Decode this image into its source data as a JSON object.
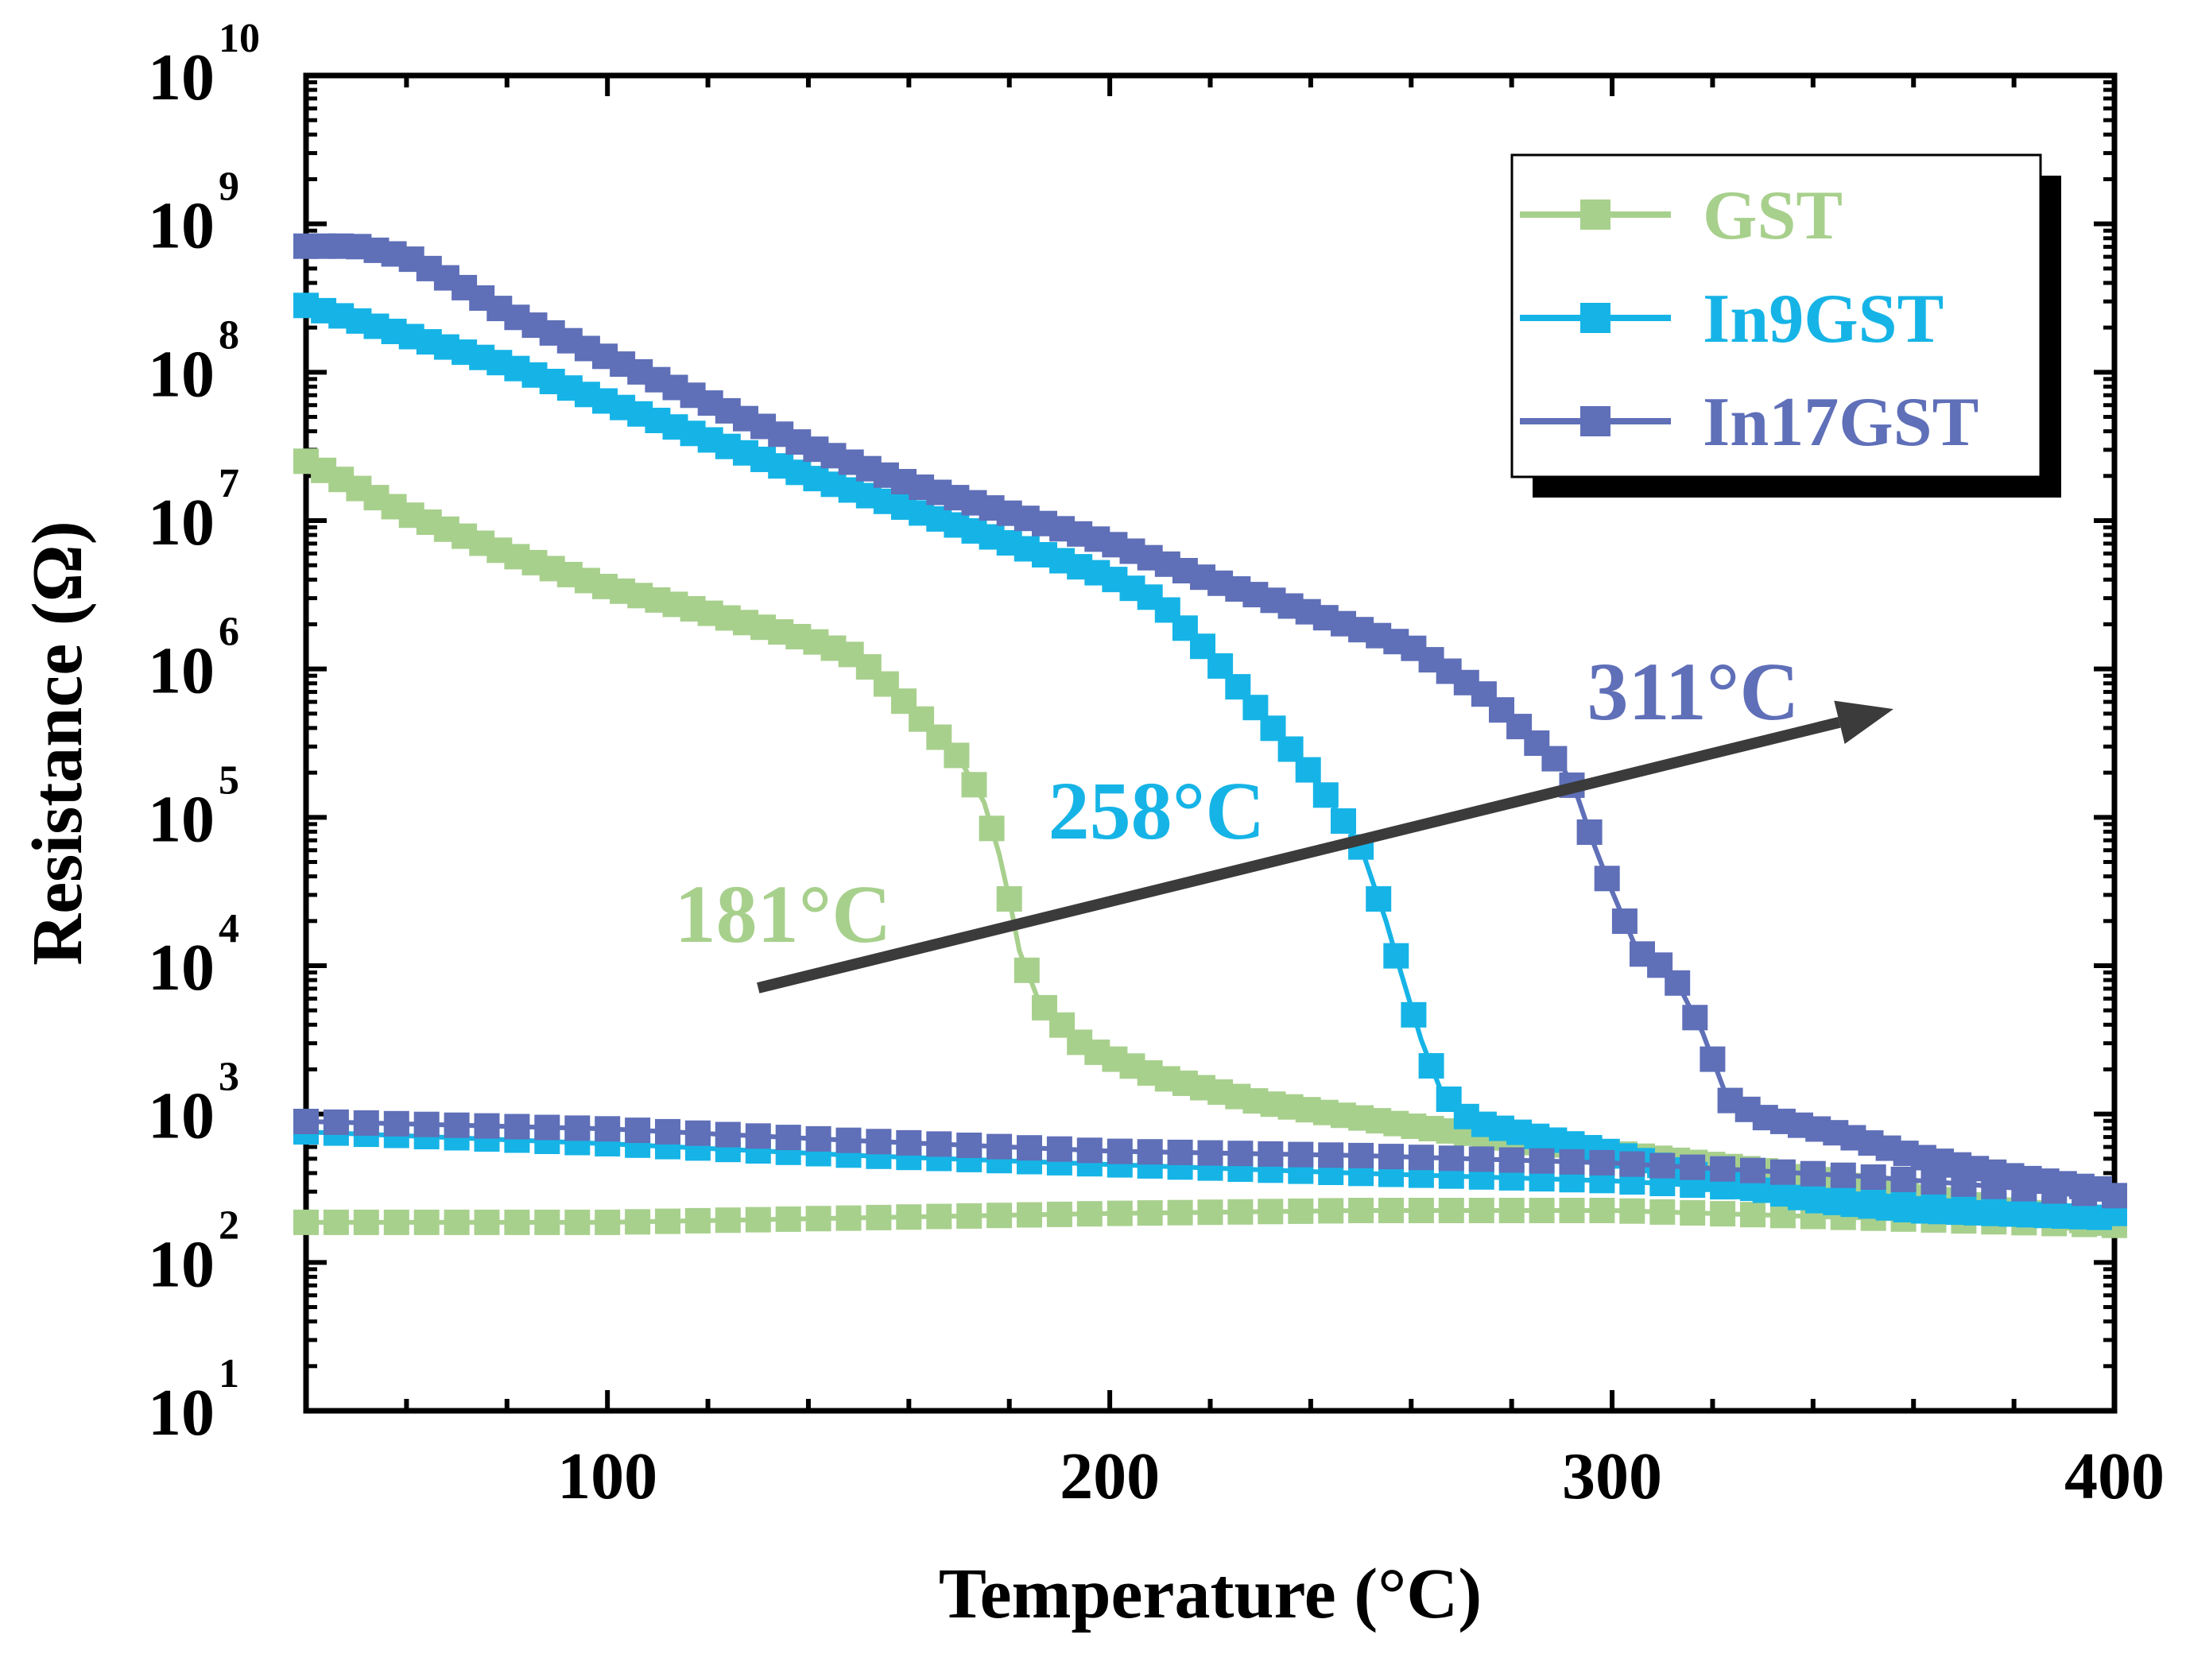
{
  "chart_data": {
    "type": "scatter",
    "xlabel": "Temperature (°C)",
    "ylabel": "Resistance (Ω)",
    "xlim": [
      40,
      400
    ],
    "ylim_log10": [
      1,
      10
    ],
    "x_ticks": [
      100,
      200,
      300,
      400
    ],
    "y_tick_bases": [
      "10",
      "10",
      "10",
      "10",
      "10",
      "10",
      "10",
      "10",
      "10",
      "10"
    ],
    "y_tick_exponents": [
      "1",
      "2",
      "3",
      "4",
      "5",
      "6",
      "7",
      "8",
      "9",
      "10"
    ],
    "colors": {
      "GST": "#a8d08d",
      "In9GST": "#16b4e6",
      "In17GST": "#5f6fb8",
      "arrow": "#3b3b3b"
    },
    "series": [
      {
        "name": "GST",
        "heating": [
          [
            40,
            7.4
          ],
          [
            60,
            7.05
          ],
          [
            80,
            6.78
          ],
          [
            100,
            6.55
          ],
          [
            120,
            6.38
          ],
          [
            140,
            6.2
          ],
          [
            150,
            6.08
          ],
          [
            160,
            5.75
          ],
          [
            170,
            5.4
          ],
          [
            175,
            5.1
          ],
          [
            178,
            4.75
          ],
          [
            180,
            4.45
          ],
          [
            182,
            4.1
          ],
          [
            186,
            3.75
          ],
          [
            195,
            3.45
          ],
          [
            210,
            3.25
          ],
          [
            230,
            3.08
          ],
          [
            260,
            2.92
          ],
          [
            300,
            2.74
          ],
          [
            330,
            2.62
          ],
          [
            360,
            2.45
          ],
          [
            400,
            2.25
          ]
        ],
        "cooling": [
          [
            40,
            2.27
          ],
          [
            100,
            2.27
          ],
          [
            150,
            2.3
          ],
          [
            200,
            2.33
          ],
          [
            250,
            2.35
          ],
          [
            300,
            2.35
          ],
          [
            350,
            2.3
          ],
          [
            400,
            2.25
          ]
        ]
      },
      {
        "name": "In9GST",
        "heating": [
          [
            40,
            8.45
          ],
          [
            60,
            8.25
          ],
          [
            80,
            8.05
          ],
          [
            100,
            7.8
          ],
          [
            120,
            7.55
          ],
          [
            140,
            7.3
          ],
          [
            160,
            7.08
          ],
          [
            180,
            6.85
          ],
          [
            200,
            6.62
          ],
          [
            210,
            6.45
          ],
          [
            220,
            6.1
          ],
          [
            230,
            5.7
          ],
          [
            240,
            5.3
          ],
          [
            250,
            4.8
          ],
          [
            255,
            4.3
          ],
          [
            258,
            3.95
          ],
          [
            262,
            3.5
          ],
          [
            266,
            3.15
          ],
          [
            272,
            2.95
          ],
          [
            285,
            2.85
          ],
          [
            300,
            2.74
          ],
          [
            320,
            2.56
          ],
          [
            340,
            2.42
          ],
          [
            360,
            2.35
          ],
          [
            400,
            2.3
          ]
        ],
        "cooling": [
          [
            40,
            2.88
          ],
          [
            100,
            2.8
          ],
          [
            150,
            2.72
          ],
          [
            200,
            2.66
          ],
          [
            250,
            2.6
          ],
          [
            300,
            2.55
          ],
          [
            350,
            2.46
          ],
          [
            400,
            2.33
          ]
        ]
      },
      {
        "name": "In17GST",
        "heating": [
          [
            40,
            8.85
          ],
          [
            50,
            8.85
          ],
          [
            60,
            8.78
          ],
          [
            70,
            8.6
          ],
          [
            80,
            8.4
          ],
          [
            100,
            8.1
          ],
          [
            120,
            7.8
          ],
          [
            140,
            7.5
          ],
          [
            160,
            7.25
          ],
          [
            180,
            7.05
          ],
          [
            200,
            6.85
          ],
          [
            220,
            6.6
          ],
          [
            240,
            6.38
          ],
          [
            260,
            6.15
          ],
          [
            275,
            5.82
          ],
          [
            285,
            5.5
          ],
          [
            290,
            5.35
          ],
          [
            293,
            5.15
          ],
          [
            296,
            4.85
          ],
          [
            300,
            4.5
          ],
          [
            305,
            4.1
          ],
          [
            312,
            3.95
          ],
          [
            318,
            3.55
          ],
          [
            323,
            3.1
          ],
          [
            330,
            2.98
          ],
          [
            345,
            2.87
          ],
          [
            360,
            2.72
          ],
          [
            380,
            2.58
          ],
          [
            400,
            2.48
          ]
        ],
        "cooling": [
          [
            40,
            2.95
          ],
          [
            100,
            2.9
          ],
          [
            150,
            2.82
          ],
          [
            200,
            2.75
          ],
          [
            250,
            2.72
          ],
          [
            300,
            2.67
          ],
          [
            350,
            2.58
          ],
          [
            400,
            2.45
          ]
        ]
      }
    ],
    "legend": [
      "GST",
      "In9GST",
      "In17GST"
    ],
    "legend_position": "top-right",
    "annotations": [
      {
        "text": "181°C",
        "series": "GST",
        "x": 181
      },
      {
        "text": "258°C",
        "series": "In9GST",
        "x": 258
      },
      {
        "text": "311°C",
        "series": "In17GST",
        "x": 311
      }
    ],
    "arrow": {
      "from": [
        130,
        3.85
      ],
      "to": [
        356,
        5.73
      ]
    }
  }
}
